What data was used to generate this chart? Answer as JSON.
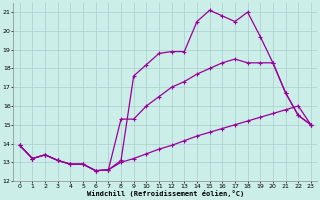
{
  "xlabel": "Windchill (Refroidissement éolien,°C)",
  "background_color": "#cceee8",
  "grid_color": "#aacccc",
  "line_color": "#990099",
  "ylim": [
    12,
    21.5
  ],
  "xlim": [
    -0.5,
    23.5
  ],
  "yticks": [
    12,
    13,
    14,
    15,
    16,
    17,
    18,
    19,
    20,
    21
  ],
  "xticks": [
    0,
    1,
    2,
    3,
    4,
    5,
    6,
    7,
    8,
    9,
    10,
    11,
    12,
    13,
    14,
    15,
    16,
    17,
    18,
    19,
    20,
    21,
    22,
    23
  ],
  "series1_x": [
    0,
    1,
    2,
    3,
    4,
    5,
    6,
    7,
    8,
    9,
    10,
    11,
    12,
    13,
    14,
    15,
    16,
    17,
    18,
    19,
    20,
    21,
    22,
    23
  ],
  "series1_y": [
    13.9,
    13.2,
    13.4,
    13.1,
    12.9,
    12.9,
    12.55,
    12.6,
    13.0,
    13.2,
    13.45,
    13.7,
    13.9,
    14.15,
    14.4,
    14.6,
    14.8,
    15.0,
    15.2,
    15.4,
    15.6,
    15.8,
    16.0,
    15.0
  ],
  "series2_x": [
    0,
    1,
    2,
    3,
    4,
    5,
    6,
    7,
    8,
    9,
    10,
    11,
    12,
    13,
    14,
    15,
    16,
    17,
    18,
    19,
    20,
    21,
    22,
    23
  ],
  "series2_y": [
    13.9,
    13.2,
    13.4,
    13.1,
    12.9,
    12.9,
    12.55,
    12.6,
    15.3,
    15.3,
    16.0,
    16.5,
    17.0,
    17.3,
    17.7,
    18.0,
    18.3,
    18.5,
    18.3,
    18.3,
    18.3,
    16.7,
    15.5,
    15.0
  ],
  "series3_x": [
    0,
    1,
    2,
    3,
    4,
    5,
    6,
    7,
    8,
    9,
    10,
    11,
    12,
    13,
    14,
    15,
    16,
    17,
    18,
    19,
    20,
    21,
    22,
    23
  ],
  "series3_y": [
    13.9,
    13.2,
    13.4,
    13.1,
    12.9,
    12.9,
    12.55,
    12.6,
    13.1,
    17.6,
    18.2,
    18.8,
    18.9,
    18.9,
    20.5,
    21.1,
    20.8,
    20.5,
    21.0,
    19.7,
    18.3,
    16.7,
    15.5,
    15.0
  ]
}
